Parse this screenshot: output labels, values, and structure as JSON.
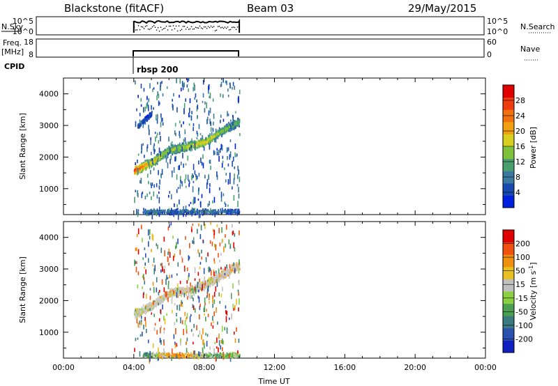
{
  "header": {
    "station": "Blackstone (fitACF)",
    "beam": "Beam 03",
    "date": "29/May/2015"
  },
  "strips": {
    "nsky": {
      "label": "N.Sky",
      "left_ticks": [
        "10^5",
        "10^0"
      ],
      "right_ticks": [
        "10^5",
        "10^0"
      ],
      "right_label": "N.Search"
    },
    "freq": {
      "label_line1": "Freq.",
      "label_line2": "[MHz]",
      "left_ticks": [
        "18",
        "8"
      ],
      "right_ticks": [
        "60",
        "0"
      ],
      "right_label": "Nave"
    },
    "cpid": {
      "label": "CPID",
      "mode": "rbsp 200"
    }
  },
  "power_panel": {
    "ylabel": "Slant Range [km]",
    "yticks": [
      "4000",
      "3000",
      "2000",
      "1000"
    ],
    "colorbar_label": "Power [dB]",
    "colorbar_ticks": [
      "28",
      "24",
      "20",
      "16",
      "12",
      "8",
      "4"
    ],
    "colors": [
      "#0020e0",
      "#1a4ab0",
      "#3a78a0",
      "#4a9f6e",
      "#7ec23c",
      "#d8d020",
      "#f0a010",
      "#f07010",
      "#f03a10",
      "#e00000"
    ]
  },
  "velocity_panel": {
    "ylabel": "Slant Range [km]",
    "yticks": [
      "4000",
      "3000",
      "2000",
      "1000"
    ],
    "colorbar_label": "Velocity [m s",
    "colorbar_label_sup": "-1",
    "colorbar_label_end": "]",
    "colorbar_ticks": [
      "200",
      "100",
      "50",
      "15",
      "-15",
      "-50",
      "-100",
      "-200"
    ],
    "colors": [
      "#1020c0",
      "#2a50b0",
      "#3a7a80",
      "#4aa050",
      "#8ad040",
      "#c0c0c0",
      "#e8c020",
      "#f09010",
      "#f05010",
      "#e00000"
    ]
  },
  "xaxis": {
    "label": "Time UT",
    "ticks": [
      "00:00",
      "04:00",
      "08:00",
      "12:00",
      "16:00",
      "20:00",
      "00:00"
    ]
  },
  "chart_data": [
    {
      "type": "heatmap",
      "title": "Blackstone (fitACF)",
      "subtitle": "Beam 03",
      "xlabel": "Time UT",
      "ylabel": "Slant Range [km]",
      "xlim": [
        0,
        24
      ],
      "ylim": [
        180,
        4500
      ],
      "value_label": "Power [dB]",
      "value_range": [
        0,
        32
      ],
      "data_window": [
        4.0,
        10.0
      ],
      "features": [
        {
          "name": "main band",
          "x": [
            4.0,
            5.0,
            6.0,
            7.0,
            8.0,
            9.0,
            10.0
          ],
          "y": [
            1600,
            1850,
            2250,
            2350,
            2500,
            2850,
            3150
          ],
          "value": [
            26,
            18,
            14,
            16,
            18,
            14,
            12
          ]
        },
        {
          "name": "upper cluster",
          "x": [
            4.2,
            4.6,
            5.0
          ],
          "y": [
            3000,
            3200,
            3400
          ],
          "value": [
            6,
            5,
            5
          ]
        },
        {
          "name": "near-range band",
          "x": [
            4.5,
            6.5,
            8.5,
            10.0
          ],
          "y": [
            300,
            300,
            300,
            300
          ],
          "value": [
            8,
            6,
            8,
            6
          ]
        }
      ]
    },
    {
      "type": "heatmap",
      "xlabel": "Time UT",
      "ylabel": "Slant Range [km]",
      "xlim": [
        0,
        24
      ],
      "ylim": [
        180,
        4500
      ],
      "value_label": "Velocity [m s-1]",
      "value_range": [
        -200,
        200
      ],
      "data_window": [
        4.0,
        10.0
      ],
      "features": [
        {
          "name": "main band",
          "x": [
            4.0,
            5.0,
            6.0,
            7.0,
            8.0,
            9.0,
            10.0
          ],
          "y": [
            1600,
            1850,
            2250,
            2350,
            2500,
            2850,
            3150
          ],
          "value": [
            0,
            0,
            -10,
            0,
            0,
            -20,
            -30
          ]
        },
        {
          "name": "near-range band",
          "x": [
            4.5,
            6.5,
            8.5,
            10.0
          ],
          "y": [
            300,
            300,
            300,
            300
          ],
          "value": [
            60,
            -60,
            40,
            20
          ]
        }
      ]
    },
    {
      "type": "line",
      "ylabel": "Freq. [MHz]",
      "xlim": [
        0,
        24
      ],
      "ylim": [
        8,
        18
      ],
      "series": [
        {
          "x": [
            4.0,
            10.0
          ],
          "y": [
            10.5,
            10.5
          ]
        }
      ]
    }
  ]
}
